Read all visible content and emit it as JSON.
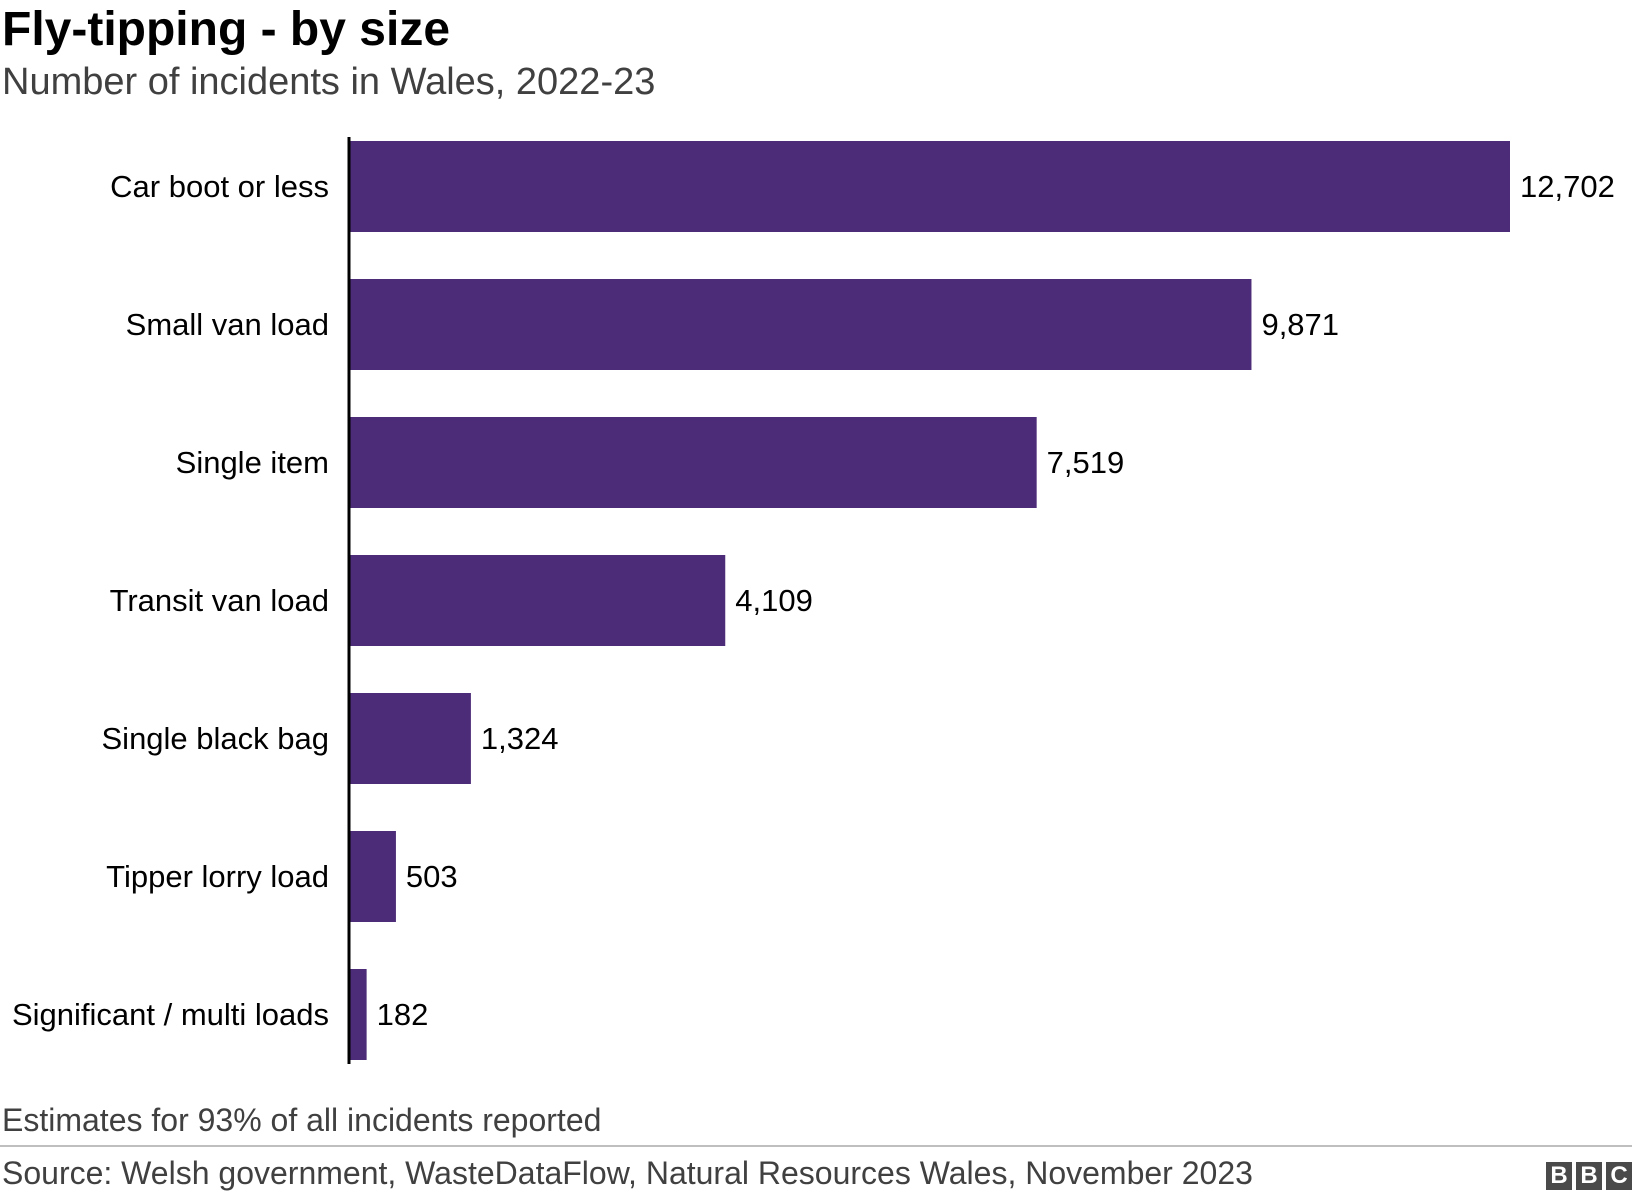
{
  "chart_data": {
    "type": "bar",
    "orientation": "horizontal",
    "title": "Fly-tipping - by size",
    "subtitle": "Number of incidents in Wales, 2022-23",
    "categories": [
      "Car boot or less",
      "Small van load",
      "Single item",
      "Transit van load",
      "Single black bag",
      "Tipper lorry load",
      "Significant / multi loads"
    ],
    "values": [
      12702,
      9871,
      7519,
      4109,
      1324,
      503,
      182
    ],
    "value_labels": [
      "12,702",
      "9,871",
      "7,519",
      "4,109",
      "1,324",
      "503",
      "182"
    ],
    "xlim": [
      0,
      12702
    ],
    "grid": false,
    "legend": "none",
    "bar_color": "#4c2c78"
  },
  "footer": {
    "note": "Estimates for 93% of all incidents reported",
    "source": "Source: Welsh government, WasteDataFlow, Natural Resources Wales, November 2023",
    "logo_letters": [
      "B",
      "B",
      "C"
    ]
  },
  "colors": {
    "bar": "#4c2c78",
    "axis": "#000000",
    "text": "#222222",
    "muted_text": "#404040"
  }
}
